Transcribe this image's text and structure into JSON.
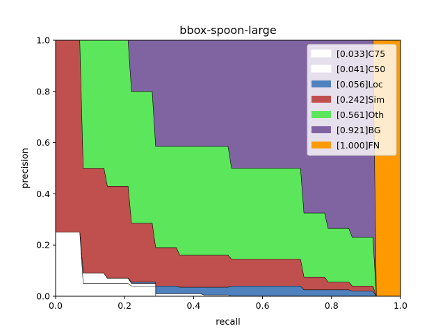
{
  "chart_data": {
    "type": "area",
    "title": "bbox-spoon-large",
    "xlabel": "recall",
    "ylabel": "precision",
    "xlim": [
      0,
      1
    ],
    "ylim": [
      0,
      1
    ],
    "xticks": [
      "0.0",
      "0.2",
      "0.4",
      "0.6",
      "0.8",
      "1.0"
    ],
    "yticks": [
      "0.0",
      "0.2",
      "0.4",
      "0.6",
      "0.8",
      "1.0"
    ],
    "legend_position": "top-right",
    "series": [
      {
        "name": "[0.033]C75",
        "color": "#ffffff",
        "points": [
          [
            0.0,
            0.25
          ],
          [
            0.07,
            0.25
          ],
          [
            0.08,
            0.05
          ],
          [
            0.21,
            0.05
          ],
          [
            0.22,
            0.04
          ],
          [
            0.29,
            0.04
          ],
          [
            0.29,
            0.0
          ],
          [
            0.5,
            0.0
          ],
          [
            0.5,
            0.0
          ],
          [
            1.0,
            0.0
          ]
        ]
      },
      {
        "name": "[0.041]C50",
        "color": "#ffffff",
        "points": [
          [
            0.0,
            0.25
          ],
          [
            0.07,
            0.25
          ],
          [
            0.08,
            0.09
          ],
          [
            0.14,
            0.09
          ],
          [
            0.15,
            0.07
          ],
          [
            0.21,
            0.07
          ],
          [
            0.22,
            0.05
          ],
          [
            0.29,
            0.05
          ],
          [
            0.29,
            0.01
          ],
          [
            0.42,
            0.01
          ],
          [
            0.43,
            0.005
          ],
          [
            0.5,
            0.005
          ],
          [
            0.51,
            0.0
          ],
          [
            1.0,
            0.0
          ]
        ]
      },
      {
        "name": "[0.056]Loc",
        "color": "#4f81bd",
        "points": [
          [
            0.0,
            0.25
          ],
          [
            0.07,
            0.25
          ],
          [
            0.08,
            0.09
          ],
          [
            0.14,
            0.09
          ],
          [
            0.15,
            0.07
          ],
          [
            0.21,
            0.07
          ],
          [
            0.22,
            0.055
          ],
          [
            0.29,
            0.055
          ],
          [
            0.29,
            0.04
          ],
          [
            0.35,
            0.04
          ],
          [
            0.36,
            0.035
          ],
          [
            0.42,
            0.035
          ],
          [
            0.43,
            0.035
          ],
          [
            0.5,
            0.035
          ],
          [
            0.51,
            0.04
          ],
          [
            0.71,
            0.04
          ],
          [
            0.72,
            0.025
          ],
          [
            0.78,
            0.025
          ],
          [
            0.79,
            0.025
          ],
          [
            0.85,
            0.025
          ],
          [
            0.86,
            0.02
          ],
          [
            0.92,
            0.02
          ],
          [
            0.93,
            0.0
          ],
          [
            1.0,
            0.0
          ]
        ]
      },
      {
        "name": "[0.242]Sim",
        "color": "#c0504d",
        "points": [
          [
            0.0,
            1.0
          ],
          [
            0.07,
            1.0
          ],
          [
            0.08,
            0.5
          ],
          [
            0.14,
            0.5
          ],
          [
            0.15,
            0.43
          ],
          [
            0.21,
            0.43
          ],
          [
            0.22,
            0.285
          ],
          [
            0.28,
            0.285
          ],
          [
            0.29,
            0.19
          ],
          [
            0.35,
            0.19
          ],
          [
            0.36,
            0.16
          ],
          [
            0.5,
            0.16
          ],
          [
            0.51,
            0.145
          ],
          [
            0.71,
            0.145
          ],
          [
            0.72,
            0.075
          ],
          [
            0.78,
            0.075
          ],
          [
            0.79,
            0.055
          ],
          [
            0.85,
            0.055
          ],
          [
            0.86,
            0.04
          ],
          [
            0.92,
            0.04
          ],
          [
            0.93,
            0.0
          ],
          [
            1.0,
            0.0
          ]
        ]
      },
      {
        "name": "[0.561]Oth",
        "color": "#5ce65c",
        "points": [
          [
            0.0,
            1.0
          ],
          [
            0.21,
            1.0
          ],
          [
            0.22,
            0.8
          ],
          [
            0.28,
            0.8
          ],
          [
            0.29,
            0.585
          ],
          [
            0.5,
            0.585
          ],
          [
            0.51,
            0.5
          ],
          [
            0.71,
            0.5
          ],
          [
            0.72,
            0.325
          ],
          [
            0.78,
            0.325
          ],
          [
            0.79,
            0.265
          ],
          [
            0.85,
            0.265
          ],
          [
            0.86,
            0.23
          ],
          [
            0.92,
            0.23
          ],
          [
            0.93,
            0.0
          ],
          [
            1.0,
            0.0
          ]
        ]
      },
      {
        "name": "[0.921]BG",
        "color": "#8064a2",
        "points": [
          [
            0.0,
            1.0
          ],
          [
            0.92,
            1.0
          ],
          [
            0.93,
            0.0
          ],
          [
            1.0,
            0.0
          ]
        ]
      },
      {
        "name": "[1.000]FN",
        "color": "#ff9900",
        "points": [
          [
            0.0,
            1.0
          ],
          [
            1.0,
            1.0
          ]
        ]
      }
    ]
  }
}
